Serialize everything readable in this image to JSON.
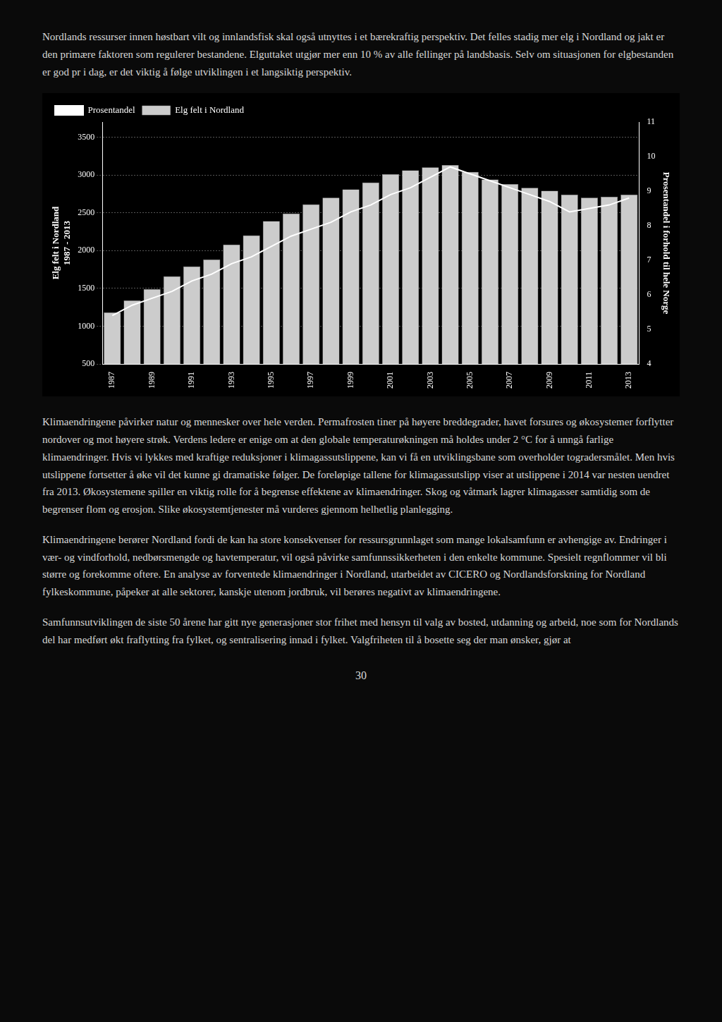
{
  "paragraphs": [
    "Nordlands ressurser innen høstbart vilt og innlandsfisk skal også utnyttes i et bærekraftig perspektiv. Det felles stadig mer elg i Nordland og jakt er den primære faktoren som regulerer bestandene. Elguttaket utgjør mer enn 10 % av alle fellinger på landsbasis. Selv om situasjonen for elgbestanden er god pr i dag, er det viktig å følge utviklingen i et langsiktig perspektiv.",
    "Klimaendringene påvirker natur og mennesker over hele verden. Permafrosten tiner på høyere breddegrader, havet forsures og økosystemer forflytter nordover og mot høyere strøk. Verdens ledere er enige om at den globale temperaturøkningen må holdes under 2 °C for å unngå farlige klimaendringer. Hvis vi lykkes med kraftige reduksjoner i klimagassutslippene, kan vi få en utviklingsbane som overholder togradersmålet. Men hvis utslippene fortsetter å øke vil det kunne gi dramatiske følger. De foreløpige tallene for klimagassutslipp viser at utslippene i 2014 var nesten uendret fra 2013. Økosystemene spiller en viktig rolle for å begrense effektene av klimaendringer. Skog og våtmark lagrer klimagasser samtidig som de begrenser flom og erosjon. Slike økosystemtjenester må vurderes gjennom helhetlig planlegging.",
    "Klimaendringene berører Nordland fordi de kan ha store konsekvenser for ressursgrunnlaget som mange lokalsamfunn er avhengige av. Endringer i vær- og vindforhold, nedbørsmengde og havtemperatur, vil også påvirke samfunnssikkerheten i den enkelte kommune. Spesielt regnflommer vil bli større og forekomme oftere. En analyse av forventede klimaendringer i Nordland, utarbeidet av CICERO og Nordlandsforskning for Nordland fylkeskommune, påpeker at alle sektorer, kanskje utenom jordbruk, vil berøres negativt av klimaendringene.",
    "Samfunnsutviklingen de siste 50 årene har gitt nye generasjoner stor frihet med hensyn til valg av bosted, utdanning og arbeid, noe som for Nordlands del har medført økt fraflytting fra fylket, og sentralisering innad i fylket. Valgfriheten til å bosette seg der man ønsker, gjør at"
  ],
  "page_number": "30",
  "chart_data": {
    "type": "bar",
    "y_label": "Elg felt i Nordland\n1987 - 2013",
    "y2_label": "Prosentandel i forhold til hele Norge",
    "x": [
      1987,
      1988,
      1989,
      1990,
      1991,
      1992,
      1993,
      1994,
      1995,
      1996,
      1997,
      1998,
      1999,
      2000,
      2001,
      2002,
      2003,
      2004,
      2005,
      2006,
      2007,
      2008,
      2009,
      2010,
      2011,
      2012,
      2013
    ],
    "xlim": [
      1986.5,
      2013.5
    ],
    "xticks": [
      1987,
      1989,
      1991,
      1993,
      1995,
      1997,
      1999,
      2001,
      2003,
      2005,
      2007,
      2009,
      2011,
      2013
    ],
    "ylim": [
      500,
      3700
    ],
    "yticks": [
      500,
      1000,
      1500,
      2000,
      2500,
      3000,
      3500
    ],
    "y2lim": [
      4,
      11
    ],
    "y2ticks": [
      4,
      5,
      6,
      7,
      8,
      9,
      10,
      11
    ],
    "grid": true,
    "legend": "upper left",
    "series": [
      {
        "name": "Elg felt i Nordland",
        "type": "bar",
        "color": "#cccccc",
        "values": [
          1180,
          1340,
          1490,
          1660,
          1790,
          1880,
          2080,
          2200,
          2390,
          2490,
          2610,
          2700,
          2810,
          2900,
          3010,
          3060,
          3100,
          3130,
          3040,
          2940,
          2880,
          2830,
          2790,
          2740,
          2700,
          2710,
          2740
        ]
      },
      {
        "name": "Prosentandel",
        "type": "line",
        "color": "#ffffff",
        "axis": "y2",
        "values": [
          5.4,
          5.7,
          5.9,
          6.1,
          6.4,
          6.6,
          6.9,
          7.1,
          7.4,
          7.7,
          7.9,
          8.1,
          8.4,
          8.6,
          8.9,
          9.1,
          9.4,
          9.7,
          9.5,
          9.3,
          9.1,
          8.9,
          8.7,
          8.4,
          8.5,
          8.6,
          8.8
        ]
      }
    ]
  }
}
